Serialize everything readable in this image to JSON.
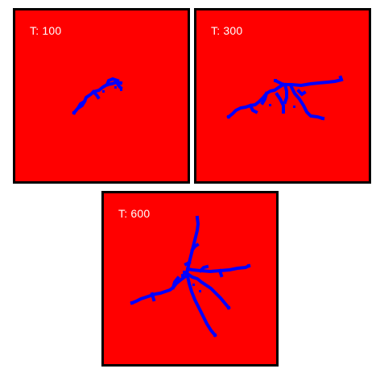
{
  "colors": {
    "background": "#ff0000",
    "aggregate": "#0000ff",
    "border": "#000000",
    "label": "#ffffff"
  },
  "panels": [
    {
      "label": "T: 100"
    },
    {
      "label": "T: 300"
    },
    {
      "label": "T: 600"
    }
  ]
}
